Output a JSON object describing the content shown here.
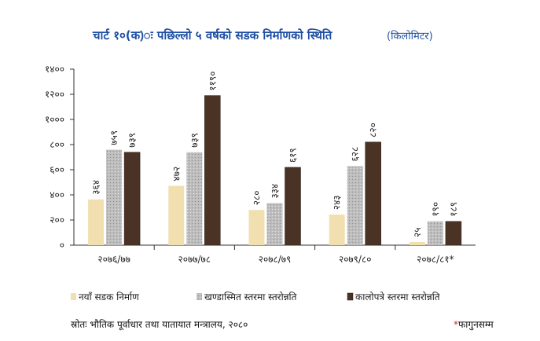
{
  "chart_data": {
    "type": "bar",
    "title": "चार्ट १०(क)ः पछिल्लो ५ वर्षको सडक निर्माणको स्थिति",
    "unit": "(किलोमिटर)",
    "categories": [
      "२०७६/७७",
      "२०७७/७८",
      "२०७८/७९",
      "२०७९/८०",
      "२०७८/८१*"
    ],
    "series": [
      {
        "name": "नयाँ सडक निर्माण",
        "values": [
          364,
          472,
          280,
          243,
          25
        ],
        "labels": [
          "३६४",
          "४७२",
          "२८०",
          "२४३",
          "२५"
        ],
        "color": "#f1dfb0"
      },
      {
        "name": "खण्डास्मित स्तरमा स्तरोन्नति",
        "values": [
          759,
          739,
          334,
          628,
          190
        ],
        "labels": [
          "७५९",
          "७३९",
          "३३४",
          "६२८",
          "१९०"
        ],
        "color": "#bdbdbd"
      },
      {
        "name": "कालोपत्रे स्तरमा स्तरोन्नति",
        "values": [
          739,
          1190,
          619,
          820,
          189
        ],
        "labels": [
          "७३९",
          "११९०",
          "६१९",
          "८२०",
          "१८९"
        ],
        "color": "#4a3324"
      }
    ],
    "ylim": [
      0,
      1400
    ],
    "yticks": [
      0,
      200,
      400,
      600,
      800,
      1000,
      1200,
      1400
    ],
    "ytick_labels": [
      "०",
      "२००",
      "४००",
      "६००",
      "८००",
      "१०००",
      "१२००",
      "१४००"
    ],
    "grid": false,
    "legend_position": "bottom",
    "source": "स्रोतः भौतिक पूर्वाधार तथा यातायात मन्त्रालय, २०८०",
    "note_star": "*",
    "note": "फागुनसम्म"
  }
}
